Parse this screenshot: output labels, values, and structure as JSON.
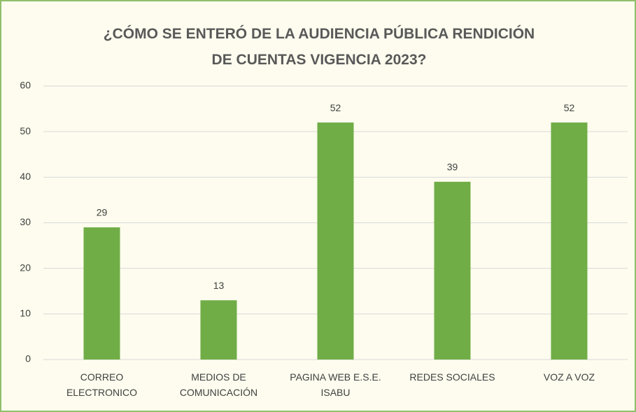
{
  "chart_data": {
    "type": "bar",
    "title": "¿CÓMO SE ENTERÓ DE LA AUDIENCIA PÚBLICA RENDICIÓN DE CUENTAS VIGENCIA 2023?",
    "categories": [
      "CORREO ELECTRONICO",
      "MEDIOS DE COMUNICACIÓN",
      "PAGINA WEB E.S.E. ISABU",
      "REDES SOCIALES",
      "VOZ A VOZ"
    ],
    "values": [
      29,
      13,
      52,
      39,
      52
    ],
    "color": "#70ad47",
    "ylim": [
      0,
      60
    ],
    "yticks": [
      0,
      10,
      20,
      30,
      40,
      50,
      60
    ],
    "grid": true
  }
}
